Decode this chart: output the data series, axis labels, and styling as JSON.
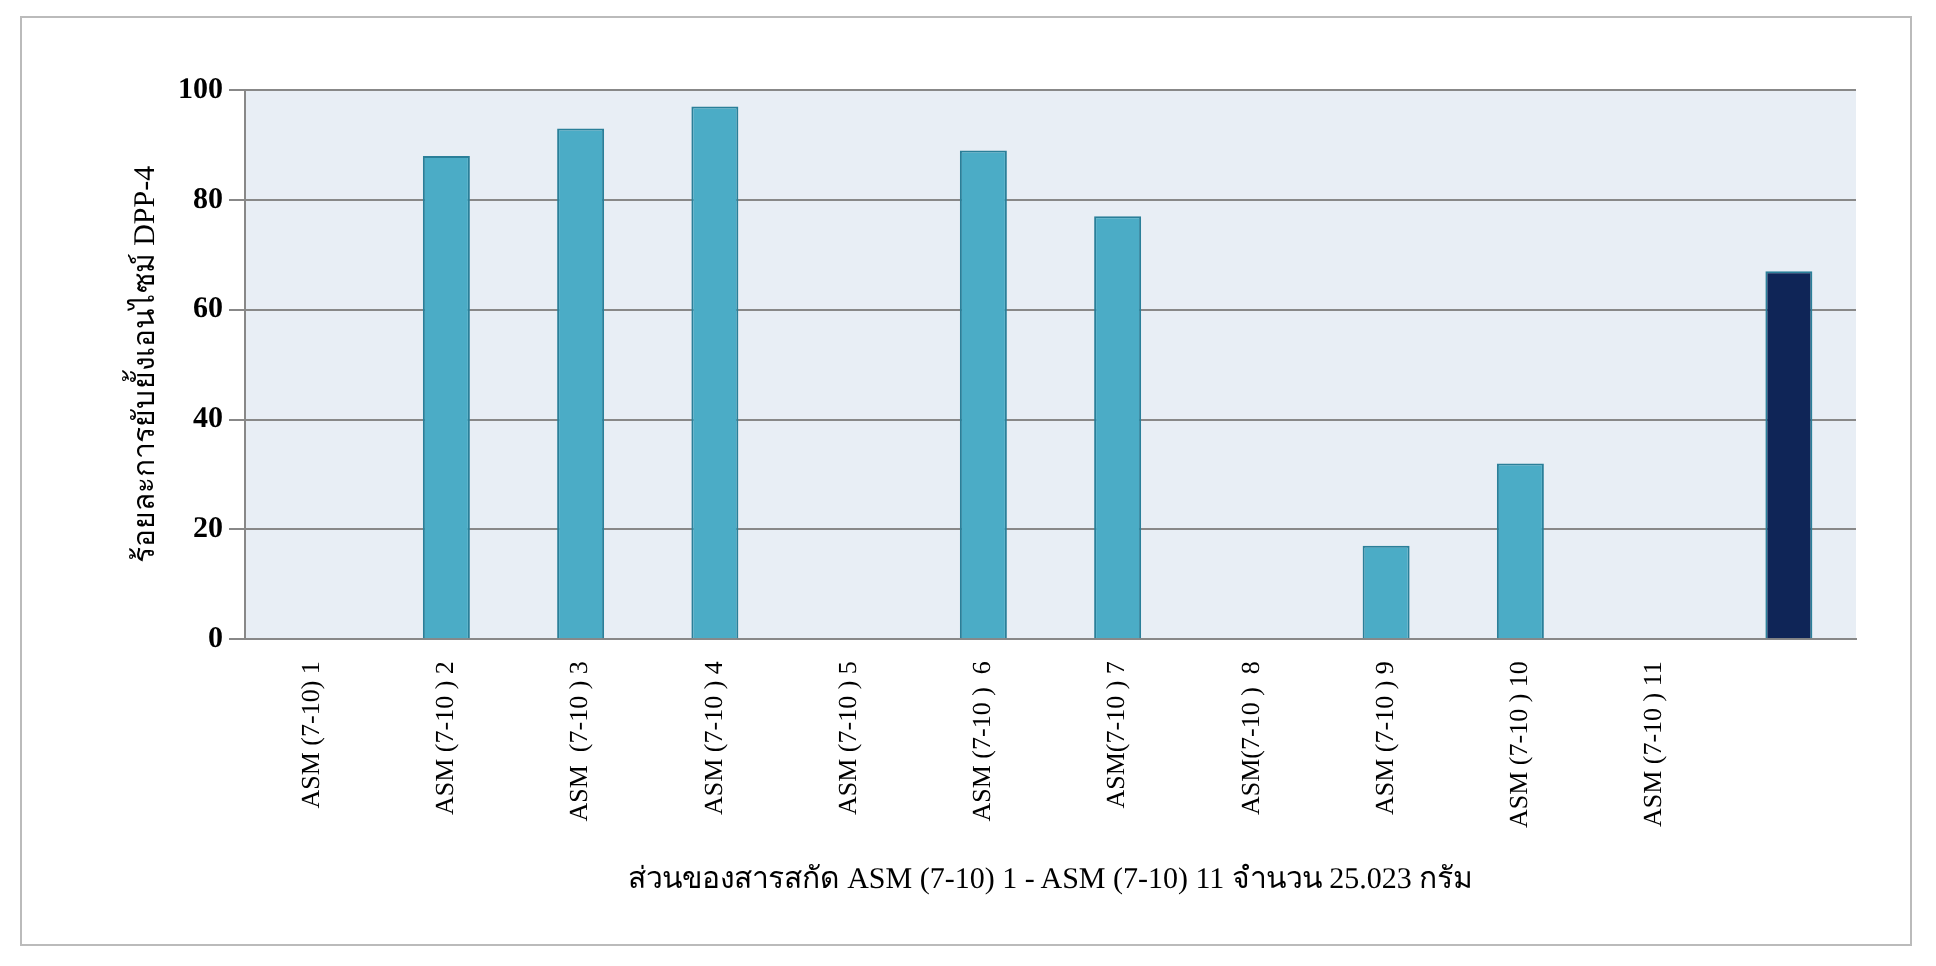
{
  "chart_data": {
    "type": "bar",
    "xlabel": "ส่วนของสารสกัด ASM (7-10) 1 - ASM (7-10) 11 จำนวน 25.023 กรัม",
    "ylabel": "ร้อยละการยับยั้งเอนไซม์ DPP-4",
    "categories": [
      "ASM (7-10) 1",
      "ASM (7-10 ) 2",
      "ASM  (7-10 ) 3",
      "ASM (7-10 ) 4",
      "ASM (7-10 ) 5",
      "ASM (7-10 )  6",
      "ASM(7-10 ) 7",
      "ASM(7-10 )  8",
      "ASM (7-10 ) 9",
      "ASM (7-10 ) 10",
      "ASM (7-10 ) 11",
      null
    ],
    "values": [
      0,
      88,
      93,
      97,
      0,
      89,
      77,
      0,
      17,
      32,
      0,
      67
    ],
    "colors": [
      "#4bacc6",
      "#4bacc6",
      "#4bacc6",
      "#4bacc6",
      "#4bacc6",
      "#4bacc6",
      "#4bacc6",
      "#4bacc6",
      "#4bacc6",
      "#4bacc6",
      "#4bacc6",
      "#0f2557"
    ],
    "ylim": [
      0,
      100
    ],
    "yticks": [
      0,
      20,
      40,
      60,
      80,
      100
    ],
    "grid": "y",
    "legend": false
  }
}
